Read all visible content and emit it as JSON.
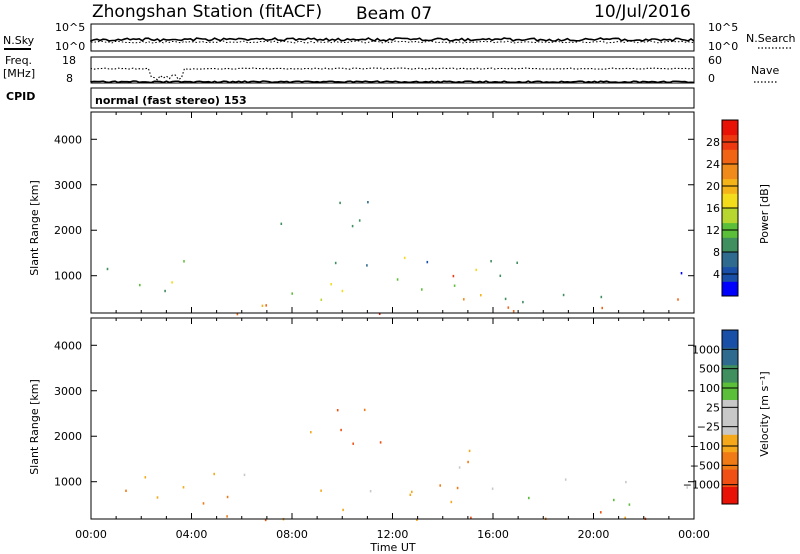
{
  "header": {
    "title": "Zhongshan Station (fitACF)",
    "beam": "Beam 07",
    "date": "10/Jul/2016"
  },
  "top_panels": {
    "nsky_label": "N.Sky",
    "nsearch_label": "N.Search",
    "noise_ticks_left": [
      "10^5",
      "10^0"
    ],
    "noise_ticks_right": [
      "10^5",
      "10^0"
    ],
    "freq_label": "Freq.",
    "freq_unit": "[MHz]",
    "freq_ticks": [
      "18",
      "8"
    ],
    "nave_label": "Nave",
    "nave_ticks": [
      "60",
      "0"
    ],
    "cpid_label": "CPID",
    "cpid_text": "normal (fast stereo) 153"
  },
  "colors": {
    "power": [
      "#0000ff",
      "#1a4fa8",
      "#2e6b8e",
      "#3f8f5f",
      "#5bbf3a",
      "#b8d630",
      "#f2dc1c",
      "#f5b31a",
      "#f08a1a",
      "#f06414",
      "#ee3810",
      "#e81206"
    ],
    "velocity": [
      "#e81206",
      "#f05014",
      "#f07a16",
      "#f5a81a",
      "#c8c8c8",
      "#c8c8c8",
      "#5bbf3a",
      "#3f8f5f",
      "#2e6b8e",
      "#1a4fa8"
    ]
  },
  "chart_data": [
    {
      "type": "heatmap",
      "name": "power",
      "ylabel": "Slant Range [km]",
      "ylim": [
        180,
        4600
      ],
      "yticks": [
        "1000",
        "2000",
        "3000",
        "4000"
      ],
      "xlim": [
        0,
        24
      ],
      "colorbar": {
        "label": "Power [dB]",
        "range": [
          0,
          32
        ],
        "ticks": [
          "4",
          "8",
          "12",
          "16",
          "20",
          "24",
          "28"
        ]
      },
      "scatter_regions": [
        {
          "t0": 0.0,
          "t1": 24.0,
          "r0": 180,
          "r1": 700,
          "mid": 22
        },
        {
          "t0": 0.0,
          "t1": 17.0,
          "r0": 700,
          "r1": 1400,
          "mid": 12
        },
        {
          "t0": 7.5,
          "t1": 8.8,
          "r0": 1500,
          "r1": 2500,
          "mid": 5
        },
        {
          "t0": 13.5,
          "t1": 15.3,
          "r0": 1000,
          "r1": 1800,
          "mid": 18
        },
        {
          "t0": 16.0,
          "t1": 24.0,
          "r0": 400,
          "r1": 1100,
          "mid": 6
        },
        {
          "t0": 9.5,
          "t1": 12.6,
          "r0": 1200,
          "r1": 2700,
          "mid": 14
        }
      ]
    },
    {
      "type": "heatmap",
      "name": "velocity",
      "ylabel": "Slant Range [km]",
      "ylim": [
        180,
        4600
      ],
      "yticks": [
        "1000",
        "2000",
        "3000",
        "4000"
      ],
      "xlabel": "Time UT",
      "xticks": [
        "00:00",
        "04:00",
        "08:00",
        "12:00",
        "16:00",
        "20:00",
        "00:00"
      ],
      "xlim": [
        0,
        24
      ],
      "colorbar": {
        "label": "Velocity [m s⁻¹]",
        "ticks": [
          "1000",
          "500",
          "100",
          "25",
          "−25",
          "−100",
          "−500",
          "−1000"
        ]
      },
      "scatter_regions": [
        {
          "t0": 0.0,
          "t1": 24.0,
          "r0": 180,
          "r1": 700,
          "mid": 2
        },
        {
          "t0": 0.0,
          "t1": 17.0,
          "r0": 700,
          "r1": 1400,
          "mid": 3
        },
        {
          "t0": 7.5,
          "t1": 8.8,
          "r0": 1500,
          "r1": 2500,
          "mid": 4
        },
        {
          "t0": 13.5,
          "t1": 15.3,
          "r0": 1000,
          "r1": 1800,
          "mid": 2
        },
        {
          "t0": 16.0,
          "t1": 24.0,
          "r0": 400,
          "r1": 1100,
          "mid": 5
        },
        {
          "t0": 9.5,
          "t1": 12.6,
          "r0": 1200,
          "r1": 2700,
          "mid": 2
        }
      ]
    }
  ]
}
